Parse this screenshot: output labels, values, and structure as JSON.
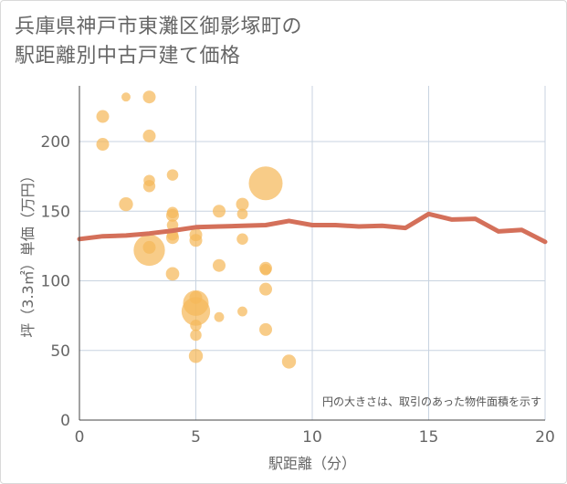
{
  "chart_data": {
    "type": "scatter",
    "title_lines": [
      "兵庫県神戸市東灘区御影塚町の",
      "駅距離別中古戸建て価格"
    ],
    "xlabel": "駅距離（分）",
    "ylabel": "坪（3.3㎡）単価（万円）",
    "xlim": [
      0,
      20
    ],
    "ylim": [
      0,
      240
    ],
    "x_ticks": [
      0,
      5,
      10,
      15,
      20
    ],
    "y_ticks": [
      0,
      50,
      100,
      150,
      200
    ],
    "grid": true,
    "note": "円の大きさは、取引のあった物件面積を示す",
    "colors": {
      "bubble": "#f5b95a",
      "trend": "#d4705a",
      "grid": "#c8d3e0"
    },
    "points": [
      {
        "x": 1,
        "y": 218,
        "s": 1
      },
      {
        "x": 1,
        "y": 198,
        "s": 1
      },
      {
        "x": 2,
        "y": 232,
        "s": 0.5
      },
      {
        "x": 2,
        "y": 155,
        "s": 1.2
      },
      {
        "x": 3,
        "y": 232,
        "s": 1
      },
      {
        "x": 3,
        "y": 204,
        "s": 1
      },
      {
        "x": 3,
        "y": 172,
        "s": 0.8
      },
      {
        "x": 3,
        "y": 168,
        "s": 0.9
      },
      {
        "x": 3,
        "y": 124,
        "s": 1
      },
      {
        "x": 3,
        "y": 122,
        "s": 6
      },
      {
        "x": 4,
        "y": 176,
        "s": 0.8
      },
      {
        "x": 4,
        "y": 149,
        "s": 0.8
      },
      {
        "x": 4,
        "y": 147,
        "s": 1
      },
      {
        "x": 4,
        "y": 140,
        "s": 0.8
      },
      {
        "x": 4,
        "y": 133,
        "s": 0.8
      },
      {
        "x": 4,
        "y": 131,
        "s": 1
      },
      {
        "x": 4,
        "y": 105,
        "s": 1.1
      },
      {
        "x": 5,
        "y": 133,
        "s": 1
      },
      {
        "x": 5,
        "y": 129,
        "s": 1
      },
      {
        "x": 5,
        "y": 88,
        "s": 1
      },
      {
        "x": 5,
        "y": 84,
        "s": 4
      },
      {
        "x": 5,
        "y": 78,
        "s": 5
      },
      {
        "x": 5,
        "y": 68,
        "s": 0.8
      },
      {
        "x": 5,
        "y": 61,
        "s": 0.8
      },
      {
        "x": 5,
        "y": 46,
        "s": 1.2
      },
      {
        "x": 6,
        "y": 150,
        "s": 1
      },
      {
        "x": 6,
        "y": 111,
        "s": 1
      },
      {
        "x": 6,
        "y": 74,
        "s": 0.6
      },
      {
        "x": 7,
        "y": 155,
        "s": 1
      },
      {
        "x": 7,
        "y": 148,
        "s": 0.7
      },
      {
        "x": 7,
        "y": 130,
        "s": 0.8
      },
      {
        "x": 7,
        "y": 78,
        "s": 0.6
      },
      {
        "x": 8,
        "y": 170,
        "s": 7
      },
      {
        "x": 8,
        "y": 109,
        "s": 1
      },
      {
        "x": 8,
        "y": 108,
        "s": 0.8
      },
      {
        "x": 8,
        "y": 94,
        "s": 1
      },
      {
        "x": 8,
        "y": 65,
        "s": 1
      },
      {
        "x": 9,
        "y": 42,
        "s": 1.2
      }
    ],
    "trend": {
      "x": [
        0,
        1,
        2,
        3,
        4,
        5,
        6,
        7,
        8,
        9,
        10,
        11,
        12,
        13,
        14,
        15,
        16,
        17,
        18,
        19,
        20
      ],
      "y": [
        130,
        132,
        132.5,
        134,
        136,
        138.5,
        139,
        139.5,
        140,
        143,
        140,
        140,
        139,
        139.5,
        138,
        148,
        144,
        144.5,
        135.5,
        136.5,
        128
      ]
    }
  }
}
